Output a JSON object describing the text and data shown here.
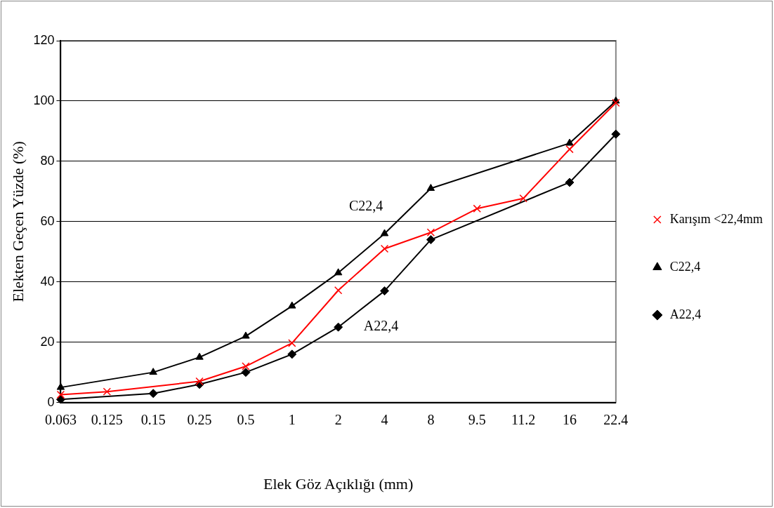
{
  "chart_data": {
    "type": "line",
    "xlabel": "Elek Göz Açıklığı (mm)",
    "ylabel": "Elekten Geçen Yüzde (%)",
    "categories": [
      "0.063",
      "0.125",
      "0.15",
      "0.25",
      "0.5",
      "1",
      "2",
      "4",
      "8",
      "9.5",
      "11.2",
      "16",
      "22.4"
    ],
    "ylim": [
      0,
      120
    ],
    "yticks": [
      0,
      20,
      40,
      60,
      80,
      100,
      120
    ],
    "grid": "y",
    "legend": "right",
    "series": [
      {
        "name": "A22,4",
        "color": "#000000",
        "marker": "diamond",
        "values": [
          1,
          null,
          3,
          6,
          10,
          16,
          25,
          37,
          54,
          null,
          null,
          73,
          89
        ]
      },
      {
        "name": "C22,4",
        "color": "#000000",
        "marker": "triangle",
        "values": [
          5,
          null,
          10,
          15,
          22,
          32,
          43,
          56,
          71,
          null,
          null,
          86,
          100
        ]
      },
      {
        "name": "Karışım <22,4mm",
        "color": "#ff0000",
        "marker": "cross",
        "values": [
          2.6,
          3.6,
          null,
          7,
          12,
          19.7,
          37.2,
          51,
          56.4,
          64.3,
          67.7,
          84,
          99.4
        ]
      }
    ],
    "annotations": [
      "C22,4",
      "A22,4"
    ]
  }
}
